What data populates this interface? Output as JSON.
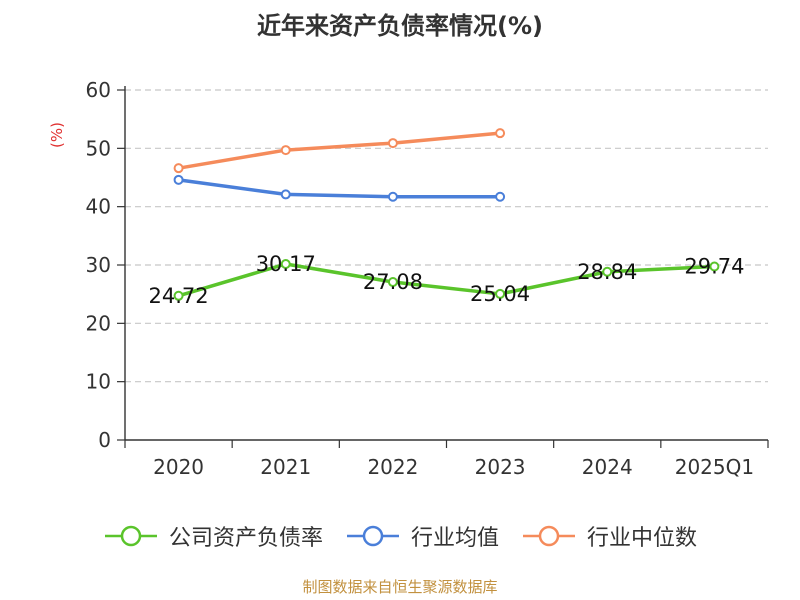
{
  "chart_data": {
    "type": "line",
    "title": "近年来资产负债率情况(%)",
    "ylabel": "(%)",
    "categories": [
      "2020",
      "2021",
      "2022",
      "2023",
      "2024",
      "2025Q1"
    ],
    "ylim": [
      0,
      60
    ],
    "yticks": [
      0,
      10,
      20,
      30,
      40,
      50,
      60
    ],
    "grid": true,
    "legend_position": "bottom",
    "series": [
      {
        "name": "公司资产负债率",
        "color": "#5ac42b",
        "values": [
          24.72,
          30.17,
          27.08,
          25.04,
          28.84,
          29.74
        ],
        "labels": [
          "24.72",
          "30.17",
          "27.08",
          "25.04",
          "28.84",
          "29.74"
        ],
        "show_labels": true
      },
      {
        "name": "行业均值",
        "color": "#4a7fd9",
        "values": [
          44.6,
          42.1,
          41.7,
          41.7,
          null,
          null
        ],
        "show_labels": false
      },
      {
        "name": "行业中位数",
        "color": "#f58b5b",
        "values": [
          46.6,
          49.7,
          50.9,
          52.6,
          null,
          null
        ],
        "show_labels": false
      }
    ]
  },
  "source": "制图数据来自恒生聚源数据库"
}
